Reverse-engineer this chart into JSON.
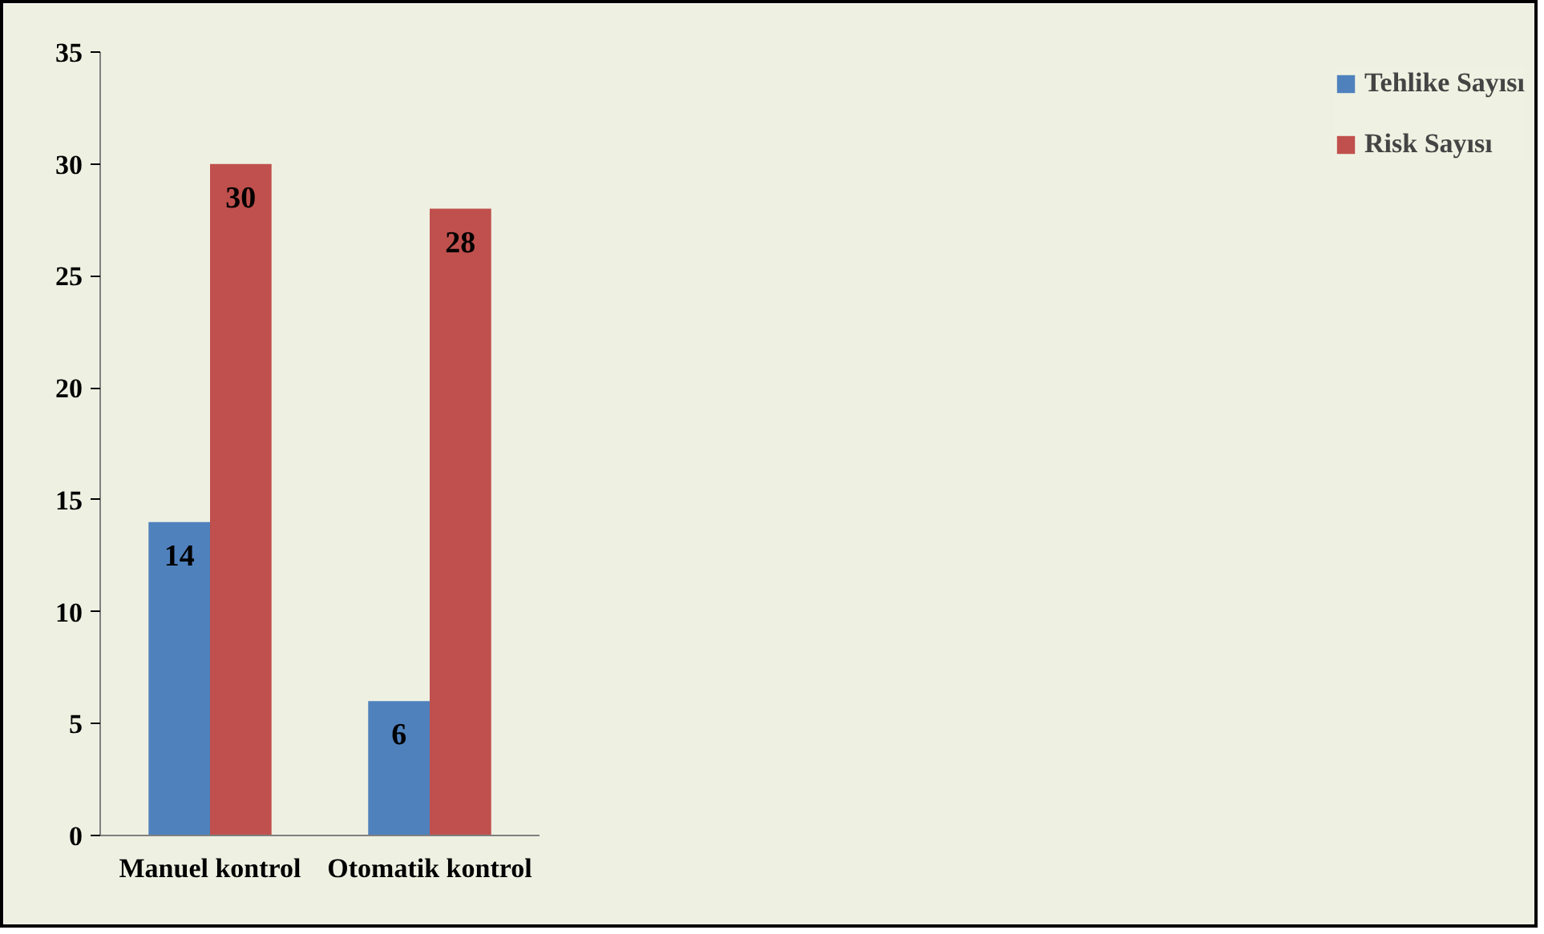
{
  "chart_data": {
    "type": "bar",
    "categories": [
      "Manuel kontrol",
      "Otomatik kontrol"
    ],
    "series": [
      {
        "name": "Tehlike Sayısı",
        "color": "#4f81bd",
        "values": [
          14,
          6
        ]
      },
      {
        "name": "Risk Sayısı",
        "color": "#c0504d",
        "values": [
          30,
          28
        ]
      }
    ],
    "ylim": [
      0,
      35
    ],
    "yticks": [
      0,
      5,
      10,
      15,
      20,
      25,
      30,
      35
    ],
    "grid": false,
    "legend": "right",
    "data_labels": true
  }
}
